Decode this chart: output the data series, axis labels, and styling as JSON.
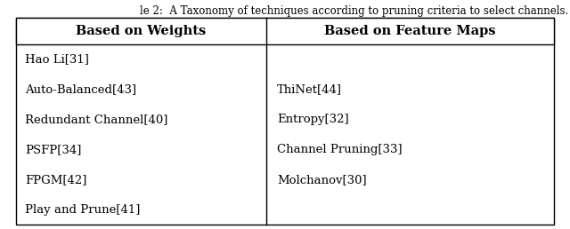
{
  "title": "le 2:  A Taxonomy of techniques according to pruning criteria to select channels.",
  "col1_header": "Based on Weights",
  "col2_header": "Based on Feature Maps",
  "col1_items": [
    "Hao Li[31]",
    "Auto-Balanced[43]",
    "Redundant Channel[40]",
    "PSFP[34]",
    "FPGM[42]",
    "Play and Prune[41]"
  ],
  "col2_items": [
    "",
    "ThiNet[44]",
    "Entropy[32]",
    "Channel Pruning[33]",
    "Molchanov[30]",
    ""
  ],
  "bg_color": "#ffffff",
  "text_color": "#000000",
  "border_color": "#000000",
  "header_fontsize": 10.5,
  "body_fontsize": 9.5,
  "title_fontsize": 8.5
}
